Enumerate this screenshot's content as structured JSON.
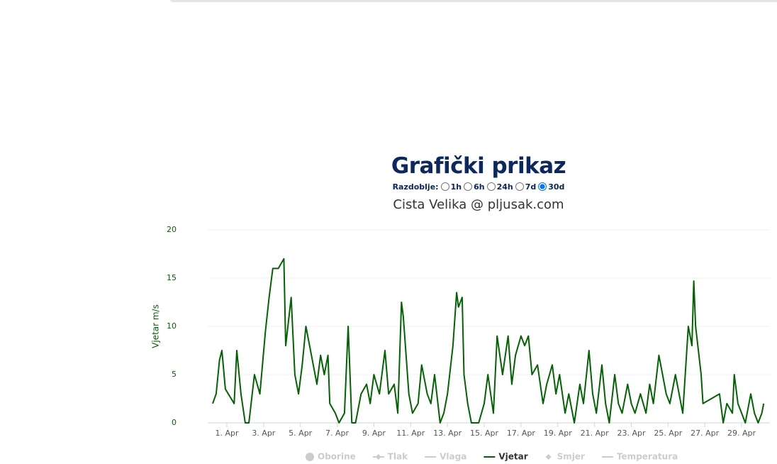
{
  "page": {
    "heading": "Grafički prikaz",
    "period_label": "Razdoblje:",
    "period_options": [
      {
        "label": "1h",
        "checked": false
      },
      {
        "label": "6h",
        "checked": false
      },
      {
        "label": "24h",
        "checked": false
      },
      {
        "label": "7d",
        "checked": false
      },
      {
        "label": "30d",
        "checked": true
      }
    ]
  },
  "chart_data": {
    "type": "line",
    "title": "Cista Velika @ pljusak.com",
    "y_label": "Vjetar m/s",
    "x": [
      0.23,
      0.42,
      0.6,
      0.73,
      0.92,
      1.4,
      1.54,
      1.77,
      2,
      2.2,
      2.5,
      2.8,
      3.1,
      3.3,
      3.5,
      3.8,
      4.1,
      4.2,
      4.5,
      4.7,
      4.9,
      5.1,
      5.3,
      5.6,
      5.9,
      6.1,
      6.3,
      6.5,
      6.6,
      6.9,
      7.1,
      7.4,
      7.6,
      7.8,
      8,
      8.3,
      8.6,
      8.8,
      9,
      9.3,
      9.6,
      9.8,
      10.1,
      10.3,
      10.5,
      10.6,
      10.9,
      11.1,
      11.4,
      11.6,
      11.9,
      12.1,
      12.3,
      12.6,
      12.8,
      13,
      13.3,
      13.5,
      13.6,
      13.8,
      13.9,
      14.1,
      14.3,
      14.7,
      15,
      15.2,
      15.5,
      15.7,
      16,
      16.3,
      16.5,
      16.7,
      17,
      17.2,
      17.4,
      17.6,
      17.9,
      18.2,
      18.4,
      18.7,
      18.9,
      19.1,
      19.4,
      19.6,
      19.9,
      20.2,
      20.4,
      20.7,
      20.9,
      21.1,
      21.4,
      21.6,
      21.8,
      22.1,
      22.3,
      22.5,
      22.8,
      23,
      23.2,
      23.5,
      23.8,
      24,
      24.2,
      24.5,
      24.7,
      24.9,
      25.1,
      25.4,
      25.6,
      25.8,
      26.1,
      26.3,
      26.4,
      26.5,
      26.8,
      26.9,
      27.8,
      28,
      28.2,
      28.5,
      28.6,
      28.8,
      29,
      29.2,
      29.5,
      29.7,
      29.9,
      30.1,
      30.2
    ],
    "series": [
      {
        "name": "Vjetar",
        "color": "#006400",
        "values": [
          2,
          3,
          6.5,
          7.5,
          3.5,
          2,
          7.5,
          3,
          0,
          0,
          5,
          3,
          9.5,
          13,
          16,
          16,
          17,
          8,
          13,
          5,
          3,
          6,
          10,
          7,
          4,
          7,
          5,
          7,
          2,
          1,
          0,
          1,
          10,
          0,
          0,
          3,
          4,
          2,
          5,
          3,
          7.5,
          3,
          4,
          1,
          12.5,
          11,
          3,
          1,
          2,
          6,
          3,
          2,
          5,
          0,
          1,
          3,
          8,
          13.5,
          12,
          13,
          5,
          2,
          0,
          0,
          2,
          5,
          1,
          9,
          5,
          9,
          4,
          7,
          9,
          8,
          9,
          5,
          6,
          2,
          4,
          6,
          3,
          5,
          1,
          3,
          0,
          4,
          2,
          7.5,
          3,
          1,
          6,
          2,
          0,
          5,
          2,
          1,
          4,
          2,
          1,
          3,
          1,
          4,
          2,
          7,
          5,
          3,
          2,
          5,
          3,
          1,
          10,
          8,
          14.7,
          10,
          5,
          2,
          3,
          0,
          2,
          1,
          5,
          2,
          1,
          0,
          3,
          1,
          0,
          1,
          2
        ]
      }
    ],
    "xlim": [
      -0.04,
      30.54
    ],
    "ylim": [
      0,
      20
    ],
    "xticks": [
      {
        "value": 1,
        "label": "1. Apr"
      },
      {
        "value": 3,
        "label": "3. Apr"
      },
      {
        "value": 5,
        "label": "5. Apr"
      },
      {
        "value": 7,
        "label": "7. Apr"
      },
      {
        "value": 9,
        "label": "9. Apr"
      },
      {
        "value": 11,
        "label": "11. Apr"
      },
      {
        "value": 13,
        "label": "13. Apr"
      },
      {
        "value": 15,
        "label": "15. Apr"
      },
      {
        "value": 17,
        "label": "17. Apr"
      },
      {
        "value": 19,
        "label": "19. Apr"
      },
      {
        "value": 21,
        "label": "21. Apr"
      },
      {
        "value": 23,
        "label": "23. Apr"
      },
      {
        "value": 25,
        "label": "25. Apr"
      },
      {
        "value": 27,
        "label": "27. Apr"
      },
      {
        "value": 29,
        "label": "29. Apr"
      }
    ],
    "yticks": [
      0,
      5,
      10,
      15,
      20
    ],
    "grid": true,
    "legend": [
      {
        "name": "Oborine",
        "symbol": "circle",
        "visible": false
      },
      {
        "name": "Tlak",
        "symbol": "line-diamond",
        "visible": false
      },
      {
        "name": "Vlaga",
        "symbol": "line",
        "visible": false
      },
      {
        "name": "Vjetar",
        "symbol": "line",
        "visible": true
      },
      {
        "name": "Smjer",
        "symbol": "diamond",
        "visible": false
      },
      {
        "name": "Temperatura",
        "symbol": "line",
        "visible": false
      }
    ]
  }
}
